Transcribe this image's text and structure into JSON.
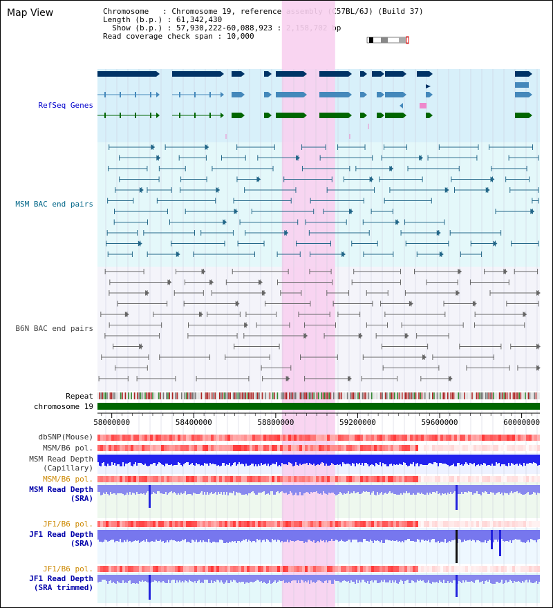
{
  "title": "Map View",
  "info": {
    "chromosome_label": "Chromosome",
    "chromosome_value": "Chromosome 19, reference assembly (C57BL/6J) (Build 37)",
    "length_label": "Length (b.p.)",
    "length_value": "61,342,430",
    "show_label": "Show (b.p.)",
    "show_value": "57,930,222-60,088,923 : 2,158,702 bp",
    "span_label": "Read coverage check span",
    "span_value": "10,000"
  },
  "view": {
    "start": 57930222,
    "end": 60088923
  },
  "highlight": {
    "start": 58830000,
    "end": 59090000
  },
  "axis": {
    "ticks": [
      "58000000",
      "58400000",
      "58800000",
      "59200000",
      "59600000",
      "60000000"
    ]
  },
  "tracks": {
    "refseq": "RefSeq Genes",
    "msm_bac": "MSM BAC end pairs",
    "b6n_bac": "B6N BAC end pairs",
    "repeat": "Repeat",
    "chromosome": "chromosome 19",
    "dbsnp": "dbSNP(Mouse)",
    "msm_b6_pol_1": "MSM/B6 pol.",
    "msm_depth_cap_1": "MSM Read Depth",
    "msm_depth_cap_2": "(Capillary)",
    "msm_b6_pol_2": "MSM/B6 pol.",
    "msm_depth_sra_1": "MSM Read Depth",
    "msm_depth_sra_2": "(SRA)",
    "jf1_b6_pol_1": "JF1/B6 pol.",
    "jf1_depth_sra_1": "JF1 Read Depth",
    "jf1_depth_sra_2": "(SRA)",
    "jf1_b6_pol_2": "JF1/B6 pol.",
    "jf1_depth_trim_1": "JF1 Read Depth",
    "jf1_depth_trim_2": "(SRA trimmed)"
  },
  "colors": {
    "refseq_label": "#0000cc",
    "msm_label": "#006688",
    "b6n_label": "#444444",
    "pol_label": "#cc8800",
    "depth_label": "#0000aa",
    "highlight": "#f8d0f0",
    "refseq_bg": "#d8f0fa",
    "msm_bg": "#e4f8fa",
    "b6n_bg": "#f4f4fa",
    "gene_dark": "#003366",
    "gene_mid": "#4488bb",
    "gene_green": "#006600"
  }
}
